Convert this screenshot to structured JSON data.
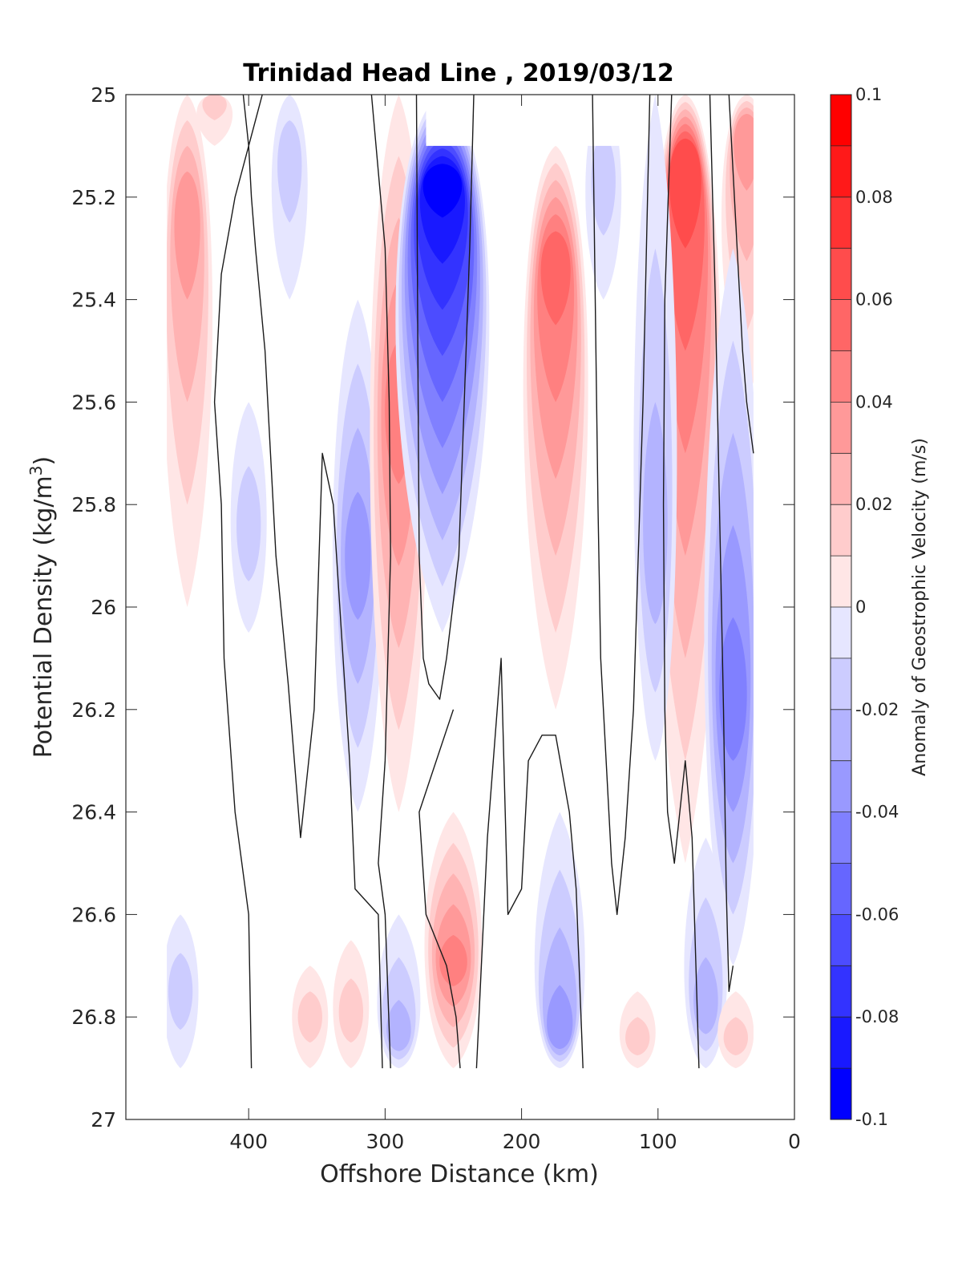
{
  "chart_data": {
    "type": "contour",
    "title": "Trinidad Head Line , 2019/03/12",
    "xlabel": "Offshore Distance (km)",
    "ylabel": "Potential Density (kg/m3)",
    "ylabel_superscript": "3",
    "x_axis": {
      "min": 0,
      "max": 490,
      "reversed": true,
      "ticks": [
        400,
        300,
        200,
        100,
        0
      ]
    },
    "y_axis": {
      "min": 25,
      "max": 27,
      "reversed": true,
      "ticks": [
        25,
        25.2,
        25.4,
        25.6,
        25.8,
        26,
        26.2,
        26.4,
        26.6,
        26.8,
        27
      ]
    },
    "tick_labels_y": [
      "25",
      "25.2",
      "25.4",
      "25.6",
      "25.8",
      "26",
      "26.2",
      "26.4",
      "26.6",
      "26.8",
      "27"
    ],
    "tick_labels_x": [
      "400",
      "300",
      "200",
      "100",
      "0"
    ],
    "colorbar": {
      "label": "Anomaly of Geostrophic Velocity (m/s)",
      "min": -0.1,
      "max": 0.1,
      "step": 0.01,
      "ticks": [
        0.1,
        0.08,
        0.06,
        0.04,
        0.02,
        0,
        -0.02,
        -0.04,
        -0.06,
        -0.08,
        -0.1
      ],
      "tick_labels": [
        "0.1",
        "0.08",
        "0.06",
        "0.04",
        "0.02",
        "0",
        "-0.02",
        "-0.04",
        "-0.06",
        "-0.08",
        "-0.1"
      ],
      "colormap": "red-white-blue (diverging)",
      "positive_color": "#ff0000",
      "negative_color": "#0000ff"
    },
    "data_extent": {
      "x_range_km": [
        30,
        460
      ],
      "density_range": [
        25.0,
        26.9
      ]
    },
    "masked_region": {
      "x_range_km": [
        115,
        270
      ],
      "density_range": [
        25.0,
        25.1
      ]
    },
    "velocity_bands": [
      {
        "x_center_km": 445,
        "extent": [
          25.0,
          26.0
        ],
        "peak_density": 25.2,
        "peak_value": 0.035
      },
      {
        "x_center_km": 370,
        "extent": [
          25.0,
          25.4
        ],
        "peak_density": 25.1,
        "peak_value": -0.015
      },
      {
        "x_center_km": 425,
        "extent": [
          25.0,
          25.1
        ],
        "peak_density": 25.0,
        "peak_value": 0.012
      },
      {
        "x_center_km": 320,
        "extent": [
          25.4,
          26.4
        ],
        "peak_density": 25.9,
        "peak_value": -0.035
      },
      {
        "x_center_km": 290,
        "extent": [
          25.0,
          26.4
        ],
        "peak_density": 25.6,
        "peak_value": 0.045
      },
      {
        "x_center_km": 258,
        "extent": [
          25.0,
          26.05
        ],
        "peak_density": 25.15,
        "peak_value": -0.095
      },
      {
        "x_center_km": 175,
        "extent": [
          25.1,
          26.2
        ],
        "peak_density": 25.3,
        "peak_value": 0.055
      },
      {
        "x_center_km": 80,
        "extent": [
          25.0,
          26.5
        ],
        "peak_density": 25.1,
        "peak_value": 0.065
      },
      {
        "x_center_km": 35,
        "extent": [
          25.0,
          25.6
        ],
        "peak_density": 25.05,
        "peak_value": 0.035
      },
      {
        "x_center_km": 102,
        "extent": [
          25.0,
          26.3
        ],
        "peak_density": 25.9,
        "peak_value": -0.03
      },
      {
        "x_center_km": 45,
        "extent": [
          25.3,
          26.7
        ],
        "peak_density": 26.2,
        "peak_value": -0.045
      },
      {
        "x_center_km": 250,
        "extent": [
          26.4,
          26.9
        ],
        "peak_density": 26.7,
        "peak_value": 0.05
      },
      {
        "x_center_km": 172,
        "extent": [
          26.4,
          26.9
        ],
        "peak_density": 26.85,
        "peak_value": -0.035
      },
      {
        "x_center_km": 290,
        "extent": [
          26.6,
          26.9
        ],
        "peak_density": 26.85,
        "peak_value": -0.03
      },
      {
        "x_center_km": 450,
        "extent": [
          26.6,
          26.9
        ],
        "peak_density": 26.75,
        "peak_value": -0.015
      },
      {
        "x_center_km": 355,
        "extent": [
          26.7,
          26.9
        ],
        "peak_density": 26.8,
        "peak_value": 0.015
      },
      {
        "x_center_km": 325,
        "extent": [
          26.65,
          26.9
        ],
        "peak_density": 26.8,
        "peak_value": 0.015
      },
      {
        "x_center_km": 65,
        "extent": [
          26.45,
          26.9
        ],
        "peak_density": 26.8,
        "peak_value": -0.025
      },
      {
        "x_center_km": 115,
        "extent": [
          26.75,
          26.9
        ],
        "peak_density": 26.85,
        "peak_value": 0.012
      },
      {
        "x_center_km": 43,
        "extent": [
          26.75,
          26.9
        ],
        "peak_density": 26.85,
        "peak_value": 0.012
      },
      {
        "x_center_km": 140,
        "extent": [
          25.0,
          25.4
        ],
        "peak_density": 25.15,
        "peak_value": -0.012
      },
      {
        "x_center_km": 400,
        "extent": [
          25.6,
          26.05
        ],
        "peak_density": 25.85,
        "peak_value": -0.015
      }
    ],
    "zero_contours": [
      {
        "x_km": [
          390,
          400,
          410,
          420,
          425,
          420,
          418,
          410,
          400,
          398
        ],
        "y_density": [
          25.0,
          25.1,
          25.2,
          25.35,
          25.6,
          25.8,
          26.1,
          26.4,
          26.6,
          26.9
        ]
      },
      {
        "x_km": [
          250,
          275,
          270,
          255,
          248,
          245
        ],
        "y_density": [
          26.2,
          26.4,
          26.6,
          26.7,
          26.8,
          26.9
        ]
      },
      {
        "x_km": [
          404,
          400,
          398,
          395,
          388,
          384,
          380,
          371,
          362,
          352,
          346,
          338,
          326,
          322,
          305,
          302
        ],
        "y_density": [
          25.0,
          25.1,
          25.2,
          25.3,
          25.5,
          25.7,
          25.9,
          26.15,
          26.45,
          26.2,
          25.7,
          25.8,
          26.3,
          26.55,
          26.6,
          26.9
        ]
      },
      {
        "x_km": [
          310,
          300,
          297,
          296,
          298,
          300,
          305,
          300,
          298,
          296
        ],
        "y_density": [
          25.0,
          25.3,
          25.6,
          25.9,
          26.1,
          26.3,
          26.5,
          26.6,
          26.75,
          26.9
        ]
      },
      {
        "x_km": [
          277,
          276,
          275,
          272,
          268,
          260,
          255,
          246,
          242,
          238,
          235
        ],
        "y_density": [
          25.0,
          25.5,
          25.9,
          26.1,
          26.15,
          26.18,
          26.1,
          25.9,
          25.6,
          25.3,
          25.0
        ]
      },
      {
        "x_km": [
          233,
          225,
          215,
          210,
          200,
          195,
          185,
          175,
          165,
          160,
          155
        ],
        "y_density": [
          26.9,
          26.45,
          26.1,
          26.6,
          26.55,
          26.3,
          26.25,
          26.25,
          26.4,
          26.55,
          26.9
        ]
      },
      {
        "x_km": [
          148,
          146,
          144,
          142,
          138,
          134,
          130,
          124,
          118,
          111,
          106
        ],
        "y_density": [
          25.0,
          25.4,
          25.8,
          26.1,
          26.3,
          26.5,
          26.6,
          26.45,
          26.2,
          25.6,
          25.0
        ]
      },
      {
        "x_km": [
          90,
          95,
          96,
          95,
          93,
          88,
          80,
          75,
          70
        ],
        "y_density": [
          25.0,
          25.4,
          25.8,
          26.2,
          26.4,
          26.5,
          26.3,
          26.45,
          26.9
        ]
      },
      {
        "x_km": [
          62,
          58,
          55,
          52,
          50,
          48,
          45
        ],
        "y_density": [
          25.0,
          25.4,
          25.8,
          26.2,
          26.55,
          26.75,
          26.7
        ]
      },
      {
        "x_km": [
          48,
          42,
          38,
          35,
          30
        ],
        "y_density": [
          25.0,
          25.3,
          25.5,
          25.6,
          25.7
        ]
      }
    ]
  }
}
